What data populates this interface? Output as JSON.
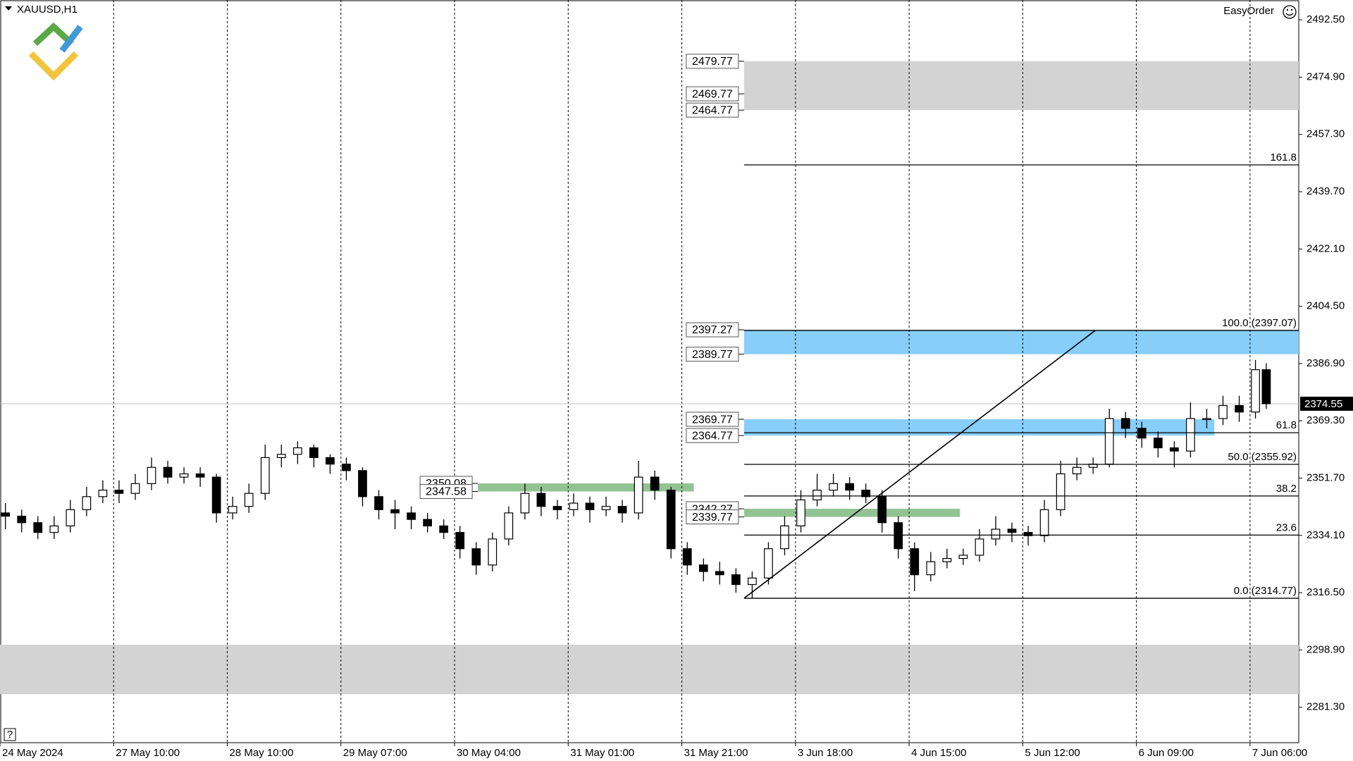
{
  "header": {
    "symbol": "XAUUSD,H1",
    "panel": "EasyOrder",
    "help": "?"
  },
  "chart_data": {
    "type": "candlestick",
    "x": [
      1,
      4,
      7,
      10,
      13,
      16,
      19,
      22,
      25,
      28,
      31,
      34,
      37,
      40,
      43,
      46,
      49,
      52,
      55,
      58,
      61,
      64,
      67,
      70,
      73,
      76,
      79,
      82,
      85,
      88,
      91,
      94,
      97,
      100,
      103,
      106,
      109,
      112,
      115,
      118,
      121,
      124,
      127,
      130,
      133,
      136,
      139,
      142,
      145,
      148,
      151,
      154,
      157,
      160,
      163,
      166,
      169,
      172,
      175,
      178,
      181,
      184,
      187,
      190,
      193,
      196,
      199,
      202,
      205,
      208,
      211,
      214,
      217,
      220,
      223,
      226,
      229,
      232,
      234
    ],
    "open": [
      2341,
      2340,
      2338,
      2335,
      2337,
      2342,
      2346,
      2348,
      2347,
      2350,
      2355,
      2352,
      2353,
      2352,
      2341,
      2343,
      2347,
      2358,
      2359,
      2361,
      2358,
      2356,
      2354,
      2346,
      2342,
      2341,
      2339,
      2337,
      2335,
      2330,
      2325,
      2333,
      2341,
      2347,
      2343,
      2342,
      2344,
      2342,
      2343,
      2341,
      2352,
      2348,
      2330,
      2325,
      2323,
      2322,
      2319,
      2321,
      2330,
      2337,
      2345,
      2348,
      2350,
      2348,
      2346,
      2338,
      2330,
      2322,
      2326,
      2327,
      2328,
      2333,
      2336,
      2335,
      2334,
      2342,
      2353,
      2355,
      2356,
      2370,
      2367,
      2364,
      2361,
      2360,
      2370,
      2370,
      2374,
      2372,
      2385
    ],
    "high": [
      2344,
      2342,
      2340,
      2340,
      2345,
      2349,
      2351,
      2351,
      2353,
      2358,
      2357,
      2355,
      2355,
      2353,
      2346,
      2350,
      2362,
      2362,
      2363,
      2362,
      2359,
      2358,
      2355,
      2348,
      2345,
      2343,
      2341,
      2339,
      2337,
      2332,
      2335,
      2343,
      2350,
      2349,
      2345,
      2347,
      2346,
      2346,
      2345,
      2357,
      2354,
      2349,
      2332,
      2327,
      2326,
      2324,
      2323,
      2332,
      2340,
      2348,
      2353,
      2353,
      2352,
      2350,
      2348,
      2340,
      2332,
      2329,
      2330,
      2330,
      2336,
      2340,
      2338,
      2337,
      2345,
      2357,
      2358,
      2358,
      2373,
      2372,
      2369,
      2366,
      2363,
      2375,
      2373,
      2377,
      2377,
      2388,
      2387
    ],
    "low": [
      2336,
      2335,
      2333,
      2333,
      2335,
      2340,
      2344,
      2344,
      2345,
      2348,
      2350,
      2350,
      2349,
      2338,
      2339,
      2341,
      2345,
      2355,
      2356,
      2355,
      2353,
      2351,
      2343,
      2339,
      2336,
      2336,
      2335,
      2333,
      2327,
      2322,
      2323,
      2331,
      2339,
      2340,
      2339,
      2340,
      2338,
      2340,
      2338,
      2339,
      2345,
      2327,
      2322,
      2320,
      2319,
      2316.5,
      2314.77,
      2319,
      2328,
      2335,
      2343,
      2346,
      2345,
      2344,
      2335,
      2327,
      2317,
      2320,
      2324,
      2325,
      2326,
      2331,
      2332,
      2331,
      2332,
      2340,
      2351,
      2353,
      2355,
      2364,
      2361,
      2358,
      2355,
      2358,
      2367,
      2368,
      2369,
      2370,
      2373
    ],
    "close": [
      2340,
      2338,
      2335,
      2337,
      2342,
      2346,
      2348,
      2347,
      2350,
      2355,
      2352,
      2353,
      2352,
      2341,
      2343,
      2347,
      2358,
      2359,
      2361,
      2358,
      2356,
      2354,
      2346,
      2342,
      2341,
      2339,
      2337,
      2335,
      2330,
      2325,
      2333,
      2341,
      2347,
      2343,
      2342,
      2344,
      2342,
      2343,
      2341,
      2352,
      2348,
      2330,
      2325,
      2323,
      2322,
      2319,
      2321,
      2330,
      2337,
      2345,
      2348,
      2350,
      2348,
      2346,
      2338,
      2330,
      2322,
      2326,
      2327,
      2328,
      2333,
      2336,
      2335,
      2334,
      2342,
      2353,
      2355,
      2356,
      2370,
      2367,
      2364,
      2361,
      2360,
      2370,
      2370,
      2374,
      2372,
      2385,
      2374.55
    ],
    "xlim": [
      0,
      240
    ],
    "xticks": [
      {
        "value": 0,
        "label": "24 May 2024"
      },
      {
        "value": 21,
        "label": "27 May 10:00"
      },
      {
        "value": 42,
        "label": "28 May 10:00"
      },
      {
        "value": 63,
        "label": "29 May 07:00"
      },
      {
        "value": 84,
        "label": "30 May 04:00"
      },
      {
        "value": 105,
        "label": "31 May 01:00"
      },
      {
        "value": 126,
        "label": "31 May 21:00"
      },
      {
        "value": 147,
        "label": "3 Jun 18:00"
      },
      {
        "value": 168,
        "label": "4 Jun 15:00"
      },
      {
        "value": 189,
        "label": "5 Jun 12:00"
      },
      {
        "value": 210,
        "label": "6 Jun 09:00"
      },
      {
        "value": 231,
        "label": "7 Jun 06:00"
      }
    ],
    "ylim": [
      2270.4,
      2498.6
    ],
    "yticks": [
      {
        "value": 2492.5,
        "label": "2492.50"
      },
      {
        "value": 2474.9,
        "label": "2474.90"
      },
      {
        "value": 2457.3,
        "label": "2457.30"
      },
      {
        "value": 2439.7,
        "label": "2439.70"
      },
      {
        "value": 2422.1,
        "label": "2422.10"
      },
      {
        "value": 2404.5,
        "label": "2404.50"
      },
      {
        "value": 2386.9,
        "label": "2386.90"
      },
      {
        "value": 2369.3,
        "label": "2369.30"
      },
      {
        "value": 2351.7,
        "label": "2351.70"
      },
      {
        "value": 2334.1,
        "label": "2334.10"
      },
      {
        "value": 2316.5,
        "label": "2316.50"
      },
      {
        "value": 2298.9,
        "label": "2298.90"
      },
      {
        "value": 2281.3,
        "label": "2281.30"
      }
    ],
    "grid": "x",
    "colors": {
      "up": "#ffffff",
      "down": "#000000",
      "outline": "#000000"
    },
    "current_price": 2374.55,
    "zones": [
      {
        "levels": [
          2479.77,
          2469.77,
          2464.77
        ],
        "from": 137.5,
        "to": 240,
        "color": "#d3d3d3"
      },
      {
        "levels": [
          2397.27,
          2389.77
        ],
        "from": 137.5,
        "to": 240,
        "color": "#87cefa"
      },
      {
        "levels": [
          2369.77,
          2364.77
        ],
        "from": 137.5,
        "to": 224.4,
        "color": "#87cefa"
      },
      {
        "levels": [
          2342.27,
          2339.77
        ],
        "from": 137.5,
        "to": 177.4,
        "color": "#93c393"
      },
      {
        "levels": [
          2350.08,
          2347.58
        ],
        "from": 88.3,
        "to": 128.2,
        "color": "#93c393"
      },
      {
        "levels": [
          2300.5,
          2285.3
        ],
        "from": 0,
        "to": 240,
        "color": "#d3d3d3"
      }
    ],
    "fibonacci": {
      "start": {
        "x": 137.5,
        "y": 2314.77
      },
      "end": {
        "x": 202.4,
        "y": 2397.07
      },
      "levels": [
        {
          "value": 2447.93,
          "label": "161.8"
        },
        {
          "value": 2397.07,
          "label": "100.0 (2397.07)"
        },
        {
          "value": 2365.63,
          "label": "61.8"
        },
        {
          "value": 2355.92,
          "label": "50.0 (2355.92)"
        },
        {
          "value": 2346.21,
          "label": "38.2"
        },
        {
          "value": 2334.19,
          "label": "23.6"
        },
        {
          "value": 2314.77,
          "label": "0.0 (2314.77)"
        }
      ]
    }
  }
}
